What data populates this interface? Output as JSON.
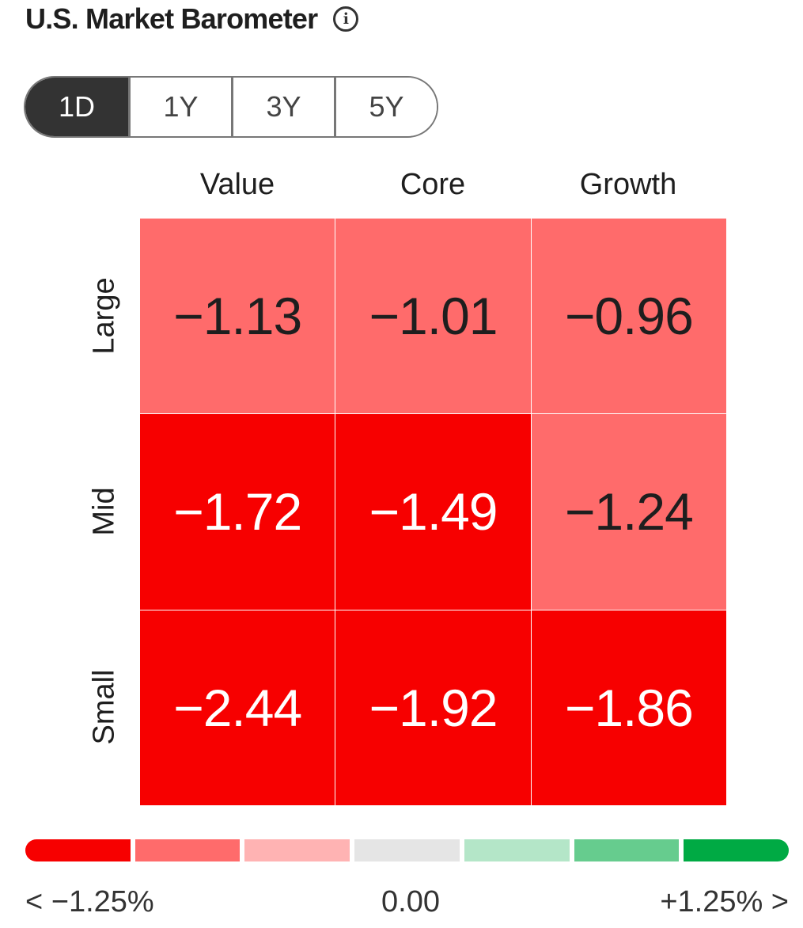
{
  "header": {
    "title": "U.S. Market Barometer",
    "info_icon": "info-icon",
    "info_glyph": "i"
  },
  "tabs": [
    {
      "label": "1D",
      "active": true
    },
    {
      "label": "1Y",
      "active": false
    },
    {
      "label": "3Y",
      "active": false
    },
    {
      "label": "5Y",
      "active": false
    }
  ],
  "chart_data": {
    "type": "heatmap",
    "columns": [
      "Value",
      "Core",
      "Growth"
    ],
    "rows": [
      "Large",
      "Mid",
      "Small"
    ],
    "values": [
      [
        -1.13,
        -1.01,
        -0.96
      ],
      [
        -1.72,
        -1.49,
        -1.24
      ],
      [
        -2.44,
        -1.92,
        -1.86
      ]
    ],
    "labels": [
      [
        "−1.13",
        "−1.01",
        "−0.96"
      ],
      [
        "−1.72",
        "−1.49",
        "−1.24"
      ],
      [
        "−2.44",
        "−1.92",
        "−1.86"
      ]
    ],
    "legend": {
      "colors": [
        "#f70000",
        "#ff6b6b",
        "#ffb3b3",
        "#e5e5e5",
        "#b4e6c8",
        "#66cc8e",
        "#00aa44"
      ],
      "min_label": "< −1.25%",
      "mid_label": "0.00",
      "max_label": "+1.25% >"
    },
    "cell_colors": {
      "strong_negative": "#f70000",
      "moderate_negative": "#ff6b6b",
      "dark_text": "#1e1e1e",
      "light_text": "#ffffff"
    }
  }
}
